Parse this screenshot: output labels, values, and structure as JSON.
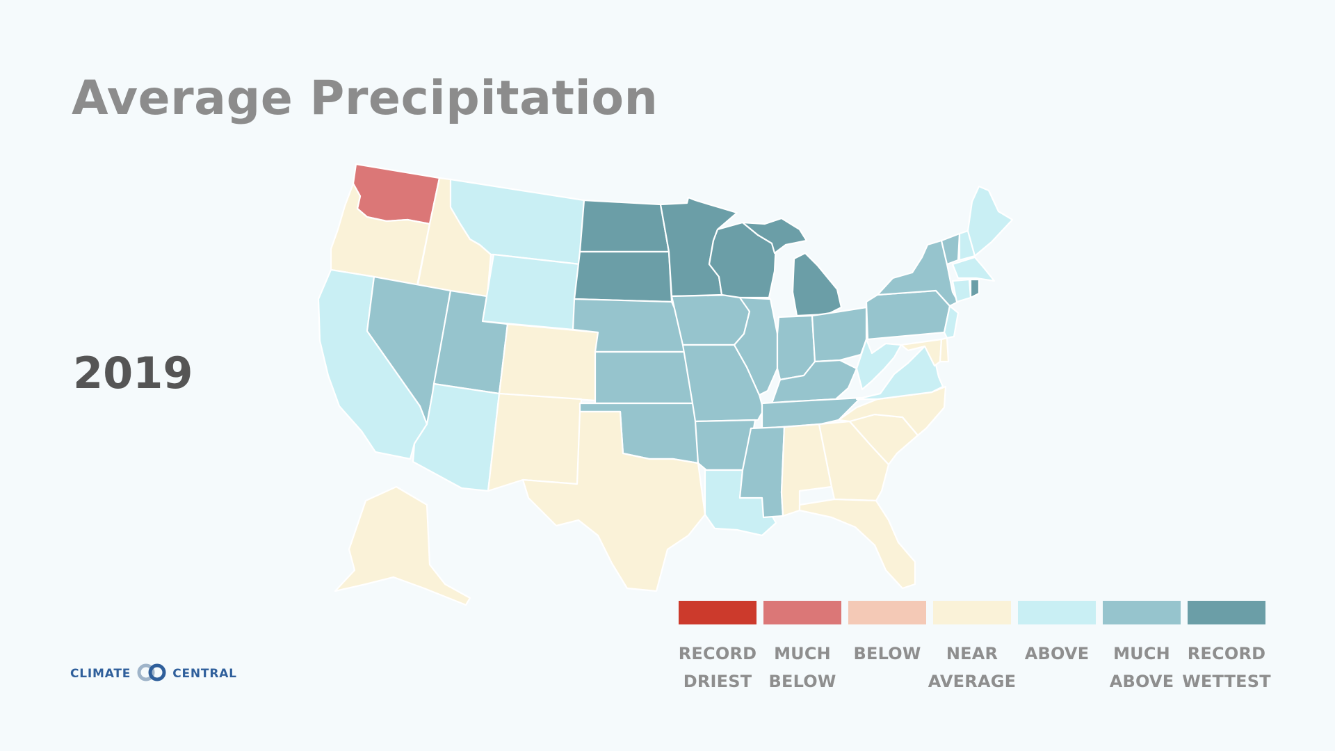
{
  "title": "Average Precipitation",
  "year": "2019",
  "logo": {
    "left_text": "CLIMATE",
    "right_text": "CENTRAL"
  },
  "legend": [
    {
      "label": "RECORD\nDRIEST",
      "color": "#cc3a2c"
    },
    {
      "label": "MUCH\nBELOW",
      "color": "#db7777"
    },
    {
      "label": "BELOW",
      "color": "#f4c9b6"
    },
    {
      "label": "NEAR\nAVERAGE",
      "color": "#faf2d8"
    },
    {
      "label": "ABOVE",
      "color": "#c9eff4"
    },
    {
      "label": "MUCH\nABOVE",
      "color": "#96c4cd"
    },
    {
      "label": "RECORD\nWETTEST",
      "color": "#6b9ea7"
    }
  ],
  "categories": {
    "much_below": "#db7777",
    "near_average": "#faf2d8",
    "above": "#c9eff4",
    "much_above": "#96c4cd",
    "record_wettest": "#6b9ea7"
  },
  "map_data": {
    "WA": "much_below",
    "OR": "near_average",
    "ID": "near_average",
    "CO": "near_average",
    "NM": "near_average",
    "TX": "near_average",
    "AL": "near_average",
    "GA": "near_average",
    "FL": "near_average",
    "SC": "near_average",
    "NC": "near_average",
    "MD": "near_average",
    "DE": "near_average",
    "AK": "near_average",
    "CA": "above",
    "AZ": "above",
    "MT": "above",
    "WY": "above",
    "LA": "above",
    "WV": "above",
    "VA": "above",
    "NJ": "above",
    "ME": "above",
    "NH": "above",
    "MA": "above",
    "CT": "above",
    "NV": "much_above",
    "UT": "much_above",
    "NE": "much_above",
    "KS": "much_above",
    "OK": "much_above",
    "AR": "much_above",
    "MS": "much_above",
    "MO": "much_above",
    "IA": "much_above",
    "IL": "much_above",
    "IN": "much_above",
    "OH": "much_above",
    "KY": "much_above",
    "TN": "much_above",
    "PA": "much_above",
    "NY": "much_above",
    "VT": "much_above",
    "ND": "record_wettest",
    "SD": "record_wettest",
    "MN": "record_wettest",
    "WI": "record_wettest",
    "MI": "record_wettest",
    "RI": "record_wettest"
  }
}
